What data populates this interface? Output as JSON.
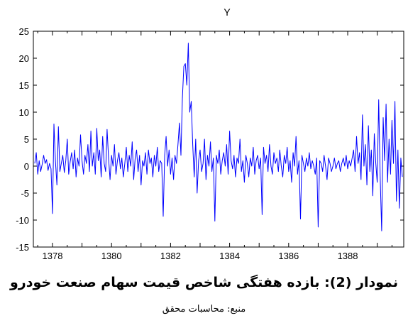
{
  "chart_data": {
    "type": "line",
    "title": "Y",
    "xlabel": "",
    "ylabel": "",
    "x_tick_labels": [
      "1378",
      "1380",
      "1382",
      "1384",
      "1386",
      "1388"
    ],
    "y_tick_labels": [
      "25",
      "20",
      "15",
      "10",
      "5",
      "0",
      "-5",
      "-10",
      "-15"
    ],
    "xlim": [
      1377.4,
      1389.85
    ],
    "ylim": [
      -15,
      25
    ],
    "line_color": "#0000ff",
    "grid": false,
    "series": [
      {
        "values": [
          [
            1377.4,
            0.5
          ],
          [
            1377.45,
            2.5
          ],
          [
            1377.5,
            -1.5
          ],
          [
            1377.55,
            1.0
          ],
          [
            1377.6,
            -1.0
          ],
          [
            1377.65,
            0.3
          ],
          [
            1377.7,
            2.0
          ],
          [
            1377.75,
            0.5
          ],
          [
            1377.8,
            1.2
          ],
          [
            1377.85,
            -0.8
          ],
          [
            1377.9,
            0.5
          ],
          [
            1377.95,
            -0.5
          ],
          [
            1378.0,
            -8.8
          ],
          [
            1378.05,
            7.8
          ],
          [
            1378.1,
            1.0
          ],
          [
            1378.15,
            -3.5
          ],
          [
            1378.2,
            7.3
          ],
          [
            1378.25,
            -1.0
          ],
          [
            1378.3,
            0.5
          ],
          [
            1378.35,
            2.0
          ],
          [
            1378.4,
            -1.2
          ],
          [
            1378.45,
            1.0
          ],
          [
            1378.5,
            5.0
          ],
          [
            1378.55,
            -1.5
          ],
          [
            1378.6,
            0.8
          ],
          [
            1378.65,
            2.5
          ],
          [
            1378.7,
            -0.5
          ],
          [
            1378.75,
            3.0
          ],
          [
            1378.8,
            -2.0
          ],
          [
            1378.85,
            1.5
          ],
          [
            1378.9,
            0.0
          ],
          [
            1378.95,
            5.8
          ],
          [
            1379.0,
            1.0
          ],
          [
            1379.05,
            -1.5
          ],
          [
            1379.1,
            2.0
          ],
          [
            1379.15,
            0.5
          ],
          [
            1379.2,
            4.0
          ],
          [
            1379.25,
            -1.0
          ],
          [
            1379.3,
            6.5
          ],
          [
            1379.35,
            0.0
          ],
          [
            1379.4,
            2.5
          ],
          [
            1379.45,
            -1.5
          ],
          [
            1379.5,
            7.0
          ],
          [
            1379.55,
            1.0
          ],
          [
            1379.6,
            3.0
          ],
          [
            1379.65,
            -2.0
          ],
          [
            1379.7,
            5.5
          ],
          [
            1379.75,
            0.5
          ],
          [
            1379.8,
            -1.0
          ],
          [
            1379.85,
            6.8
          ],
          [
            1379.9,
            1.5
          ],
          [
            1379.95,
            -2.5
          ],
          [
            1380.0,
            2.0
          ],
          [
            1380.05,
            0.0
          ],
          [
            1380.1,
            4.0
          ],
          [
            1380.15,
            -1.5
          ],
          [
            1380.2,
            1.0
          ],
          [
            1380.25,
            2.5
          ],
          [
            1380.3,
            -0.5
          ],
          [
            1380.35,
            1.5
          ],
          [
            1380.4,
            -2.0
          ],
          [
            1380.45,
            0.5
          ],
          [
            1380.5,
            3.5
          ],
          [
            1380.55,
            -1.0
          ],
          [
            1380.6,
            2.0
          ],
          [
            1380.65,
            0.0
          ],
          [
            1380.7,
            4.5
          ],
          [
            1380.75,
            -2.5
          ],
          [
            1380.8,
            1.5
          ],
          [
            1380.85,
            3.0
          ],
          [
            1380.9,
            -1.0
          ],
          [
            1380.95,
            2.0
          ],
          [
            1381.0,
            -3.5
          ],
          [
            1381.05,
            1.0
          ],
          [
            1381.1,
            0.0
          ],
          [
            1381.15,
            2.5
          ],
          [
            1381.2,
            -1.5
          ],
          [
            1381.25,
            3.0
          ],
          [
            1381.3,
            0.5
          ],
          [
            1381.35,
            1.5
          ],
          [
            1381.4,
            -2.0
          ],
          [
            1381.45,
            2.0
          ],
          [
            1381.5,
            0.0
          ],
          [
            1381.55,
            3.5
          ],
          [
            1381.6,
            -1.0
          ],
          [
            1381.65,
            1.0
          ],
          [
            1381.7,
            0.5
          ],
          [
            1381.75,
            -9.3
          ],
          [
            1381.8,
            2.0
          ],
          [
            1381.85,
            5.5
          ],
          [
            1381.9,
            0.0
          ],
          [
            1381.95,
            3.0
          ],
          [
            1382.0,
            -1.5
          ],
          [
            1382.05,
            1.5
          ],
          [
            1382.1,
            -2.5
          ],
          [
            1382.15,
            2.0
          ],
          [
            1382.2,
            0.5
          ],
          [
            1382.25,
            4.0
          ],
          [
            1382.3,
            8.0
          ],
          [
            1382.35,
            2.0
          ],
          [
            1382.4,
            12.5
          ],
          [
            1382.45,
            18.5
          ],
          [
            1382.5,
            19.0
          ],
          [
            1382.55,
            15.0
          ],
          [
            1382.6,
            22.8
          ],
          [
            1382.65,
            10.0
          ],
          [
            1382.7,
            12.0
          ],
          [
            1382.75,
            4.0
          ],
          [
            1382.8,
            -2.0
          ],
          [
            1382.85,
            5.0
          ],
          [
            1382.9,
            -5.0
          ],
          [
            1382.95,
            1.0
          ],
          [
            1383.0,
            3.0
          ],
          [
            1383.05,
            -1.0
          ],
          [
            1383.1,
            0.5
          ],
          [
            1383.15,
            5.0
          ],
          [
            1383.2,
            -2.5
          ],
          [
            1383.25,
            2.0
          ],
          [
            1383.3,
            0.0
          ],
          [
            1383.35,
            4.5
          ],
          [
            1383.4,
            -1.0
          ],
          [
            1383.45,
            1.5
          ],
          [
            1383.5,
            -10.2
          ],
          [
            1383.55,
            2.0
          ],
          [
            1383.6,
            0.5
          ],
          [
            1383.65,
            3.0
          ],
          [
            1383.7,
            -1.5
          ],
          [
            1383.75,
            1.0
          ],
          [
            1383.8,
            2.5
          ],
          [
            1383.85,
            0.0
          ],
          [
            1383.9,
            4.0
          ],
          [
            1383.95,
            -1.5
          ],
          [
            1384.0,
            6.5
          ],
          [
            1384.05,
            1.0
          ],
          [
            1384.1,
            -0.5
          ],
          [
            1384.15,
            2.0
          ],
          [
            1384.2,
            -2.0
          ],
          [
            1384.25,
            1.5
          ],
          [
            1384.3,
            0.5
          ],
          [
            1384.35,
            5.0
          ],
          [
            1384.4,
            -1.0
          ],
          [
            1384.45,
            1.0
          ],
          [
            1384.5,
            -3.0
          ],
          [
            1384.55,
            2.0
          ],
          [
            1384.6,
            0.5
          ],
          [
            1384.65,
            -2.0
          ],
          [
            1384.7,
            1.5
          ],
          [
            1384.75,
            0.0
          ],
          [
            1384.8,
            3.5
          ],
          [
            1384.85,
            -1.5
          ],
          [
            1384.9,
            1.0
          ],
          [
            1384.95,
            2.0
          ],
          [
            1385.0,
            -0.5
          ],
          [
            1385.05,
            1.5
          ],
          [
            1385.1,
            -9.0
          ],
          [
            1385.15,
            3.5
          ],
          [
            1385.2,
            0.5
          ],
          [
            1385.25,
            2.0
          ],
          [
            1385.3,
            -1.0
          ],
          [
            1385.35,
            4.0
          ],
          [
            1385.4,
            0.0
          ],
          [
            1385.45,
            -1.5
          ],
          [
            1385.5,
            2.5
          ],
          [
            1385.55,
            0.5
          ],
          [
            1385.6,
            1.5
          ],
          [
            1385.65,
            -1.0
          ],
          [
            1385.7,
            3.0
          ],
          [
            1385.75,
            0.0
          ],
          [
            1385.8,
            -2.0
          ],
          [
            1385.85,
            2.0
          ],
          [
            1385.9,
            0.5
          ],
          [
            1385.95,
            3.5
          ],
          [
            1386.0,
            -1.0
          ],
          [
            1386.05,
            1.0
          ],
          [
            1386.1,
            -3.0
          ],
          [
            1386.15,
            2.5
          ],
          [
            1386.2,
            0.0
          ],
          [
            1386.25,
            5.5
          ],
          [
            1386.3,
            -1.5
          ],
          [
            1386.35,
            1.0
          ],
          [
            1386.4,
            -9.8
          ],
          [
            1386.45,
            2.0
          ],
          [
            1386.5,
            0.5
          ],
          [
            1386.55,
            -1.0
          ],
          [
            1386.6,
            1.5
          ],
          [
            1386.65,
            0.0
          ],
          [
            1386.7,
            2.5
          ],
          [
            1386.75,
            -0.5
          ],
          [
            1386.8,
            1.0
          ],
          [
            1386.85,
            0.0
          ],
          [
            1386.9,
            -1.5
          ],
          [
            1386.95,
            1.5
          ],
          [
            1387.0,
            -11.3
          ],
          [
            1387.05,
            1.0
          ],
          [
            1387.1,
            0.5
          ],
          [
            1387.15,
            -1.0
          ],
          [
            1387.2,
            2.0
          ],
          [
            1387.25,
            0.0
          ],
          [
            1387.3,
            -2.5
          ],
          [
            1387.35,
            1.5
          ],
          [
            1387.4,
            0.5
          ],
          [
            1387.45,
            -1.0
          ],
          [
            1387.5,
            0.0
          ],
          [
            1387.55,
            1.5
          ],
          [
            1387.6,
            -0.5
          ],
          [
            1387.65,
            0.5
          ],
          [
            1387.7,
            1.0
          ],
          [
            1387.75,
            -1.0
          ],
          [
            1387.8,
            0.5
          ],
          [
            1387.85,
            1.5
          ],
          [
            1387.9,
            0.0
          ],
          [
            1387.95,
            2.0
          ],
          [
            1388.0,
            -0.5
          ],
          [
            1388.05,
            1.0
          ],
          [
            1388.1,
            0.0
          ],
          [
            1388.15,
            1.5
          ],
          [
            1388.2,
            3.0
          ],
          [
            1388.25,
            -1.0
          ],
          [
            1388.3,
            5.5
          ],
          [
            1388.35,
            0.5
          ],
          [
            1388.4,
            2.5
          ],
          [
            1388.45,
            -2.5
          ],
          [
            1388.5,
            9.5
          ],
          [
            1388.55,
            0.0
          ],
          [
            1388.6,
            4.0
          ],
          [
            1388.65,
            -3.5
          ],
          [
            1388.7,
            7.5
          ],
          [
            1388.75,
            -1.0
          ],
          [
            1388.8,
            3.0
          ],
          [
            1388.85,
            -5.5
          ],
          [
            1388.9,
            6.0
          ],
          [
            1388.95,
            0.5
          ],
          [
            1389.0,
            -3.0
          ],
          [
            1389.05,
            12.3
          ],
          [
            1389.1,
            -2.0
          ],
          [
            1389.15,
            -12.0
          ],
          [
            1389.2,
            9.0
          ],
          [
            1389.25,
            1.0
          ],
          [
            1389.3,
            11.5
          ],
          [
            1389.35,
            -3.0
          ],
          [
            1389.4,
            5.0
          ],
          [
            1389.45,
            -1.5
          ],
          [
            1389.5,
            8.5
          ],
          [
            1389.55,
            0.5
          ],
          [
            1389.6,
            12.0
          ],
          [
            1389.65,
            -6.5
          ],
          [
            1389.7,
            3.0
          ],
          [
            1389.75,
            -7.8
          ],
          [
            1389.8,
            1.5
          ],
          [
            1389.85,
            -2.0
          ]
        ]
      }
    ]
  },
  "caption": {
    "figure_title": "نمودار (2): بازده هفتگی شاخص قیمت سهام صنعت خودرو",
    "source": "منبع: محاسبات محقق"
  }
}
